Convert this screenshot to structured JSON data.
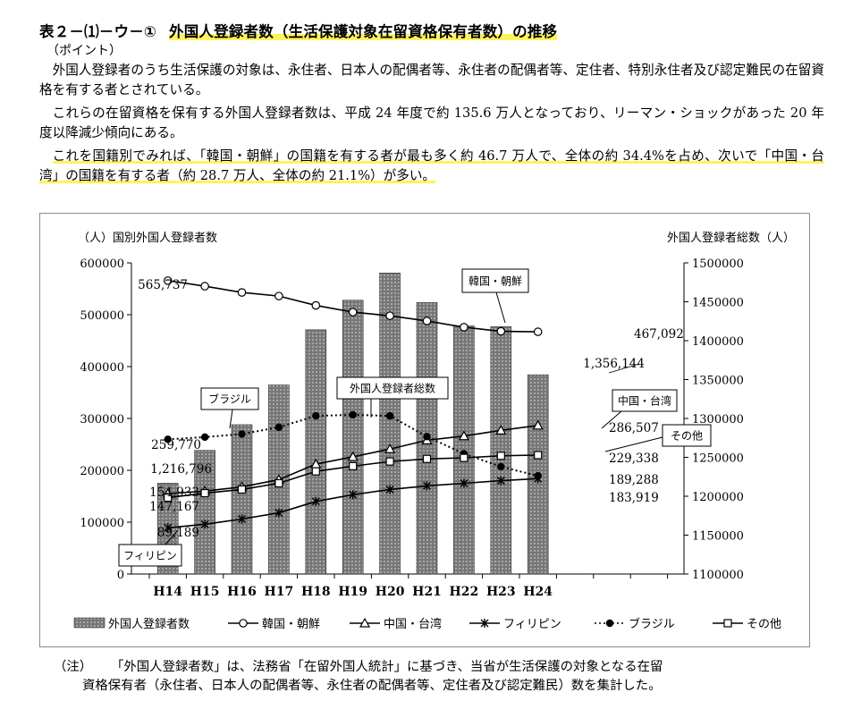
{
  "heading": {
    "number": "表２－⑴－ウ－①",
    "title": "外国人登録者数（生活保護対象在留資格保有者数）の推移"
  },
  "point_label": "（ポイント）",
  "paragraphs": {
    "p1": "外国人登録者のうち生活保護の対象は、永住者、日本人の配偶者等、永住者の配偶者等、定住者、特別永住者及び認定難民の在留資格を有する者とされている。",
    "p2": "これらの在留資格を保有する外国人登録者数は、平成 24 年度で約 135.6 万人となっており、リーマン・ショックがあった 20 年度以降減少傾向にある。",
    "p3": "これを国籍別でみれば、「韓国・朝鮮」の国籍を有する者が最も多く約 46.7 万人で、全体の約 34.4%を占め、次いで「中国・台湾」の国籍を有する者（約 28.7 万人、全体の約 21.1%）が多い。"
  },
  "note": {
    "tag": "（注）",
    "line1": "「外国人登録者数」は、法務省「在留外国人統計」に基づき、当省が生活保護の対象となる在留",
    "line2": "資格保有者（永住者、日本人の配偶者等、永住者の配偶者等、定住者及び認定難民）数を集計した。"
  },
  "chart_data": {
    "type": "bar",
    "categories": [
      "H14",
      "H15",
      "H16",
      "H17",
      "H18",
      "H19",
      "H20",
      "H21",
      "H22",
      "H23",
      "H24"
    ],
    "left_axis": {
      "label": "（人）国別外国人登録者数",
      "ylim": [
        0,
        600000
      ],
      "ticks": [
        "0",
        "100000",
        "200000",
        "300000",
        "400000",
        "500000",
        "600000"
      ]
    },
    "right_axis": {
      "label": "外国人登録者総数（人）",
      "ylim": [
        1100000,
        1500000
      ],
      "ticks": [
        "1100000",
        "1150000",
        "1200000",
        "1250000",
        "1300000",
        "1350000",
        "1400000",
        "1450000",
        "1500000"
      ]
    },
    "grid": false,
    "legend_position": "bottom",
    "bars": {
      "name": "外国人登録者数",
      "axis": "right",
      "color": "#777777",
      "values": [
        1216796,
        1259000,
        1292000,
        1343000,
        1414000,
        1452000,
        1487000,
        1449000,
        1419000,
        1418000,
        1356144
      ]
    },
    "series": [
      {
        "name": "韓国・朝鮮",
        "marker": "circle-open",
        "values": [
          565737,
          555000,
          543000,
          536000,
          518000,
          505000,
          498000,
          488000,
          476000,
          468000,
          467092
        ]
      },
      {
        "name": "中国・台湾",
        "marker": "triangle-open",
        "values": [
          154933,
          160000,
          168000,
          182000,
          212000,
          226000,
          241000,
          258000,
          266000,
          277000,
          286507
        ]
      },
      {
        "name": "フィリピン",
        "marker": "asterisk",
        "values": [
          89189,
          96000,
          106000,
          118000,
          140000,
          153000,
          163000,
          170000,
          175000,
          180000,
          183919
        ]
      },
      {
        "name": "ブラジル",
        "marker": "circle-filled",
        "dashed": true,
        "values": [
          259770,
          264000,
          270000,
          283000,
          305000,
          307000,
          305000,
          265000,
          232000,
          207000,
          189288
        ]
      },
      {
        "name": "その他",
        "marker": "square-open",
        "values": [
          147167,
          156000,
          163000,
          175000,
          198000,
          208000,
          217000,
          222000,
          224000,
          228000,
          229338
        ]
      }
    ],
    "data_labels": [
      "565,737",
      "467,092",
      "1,356,144",
      "259,770",
      "286,507",
      "1,216,796",
      "229,338",
      "154,933",
      "189,288",
      "147,167",
      "183,919",
      "89,189"
    ],
    "callouts": [
      "韓国・朝鮮",
      "外国人登録者総数",
      "ブラジル",
      "中国・台湾",
      "その他",
      "フィリピン"
    ]
  }
}
